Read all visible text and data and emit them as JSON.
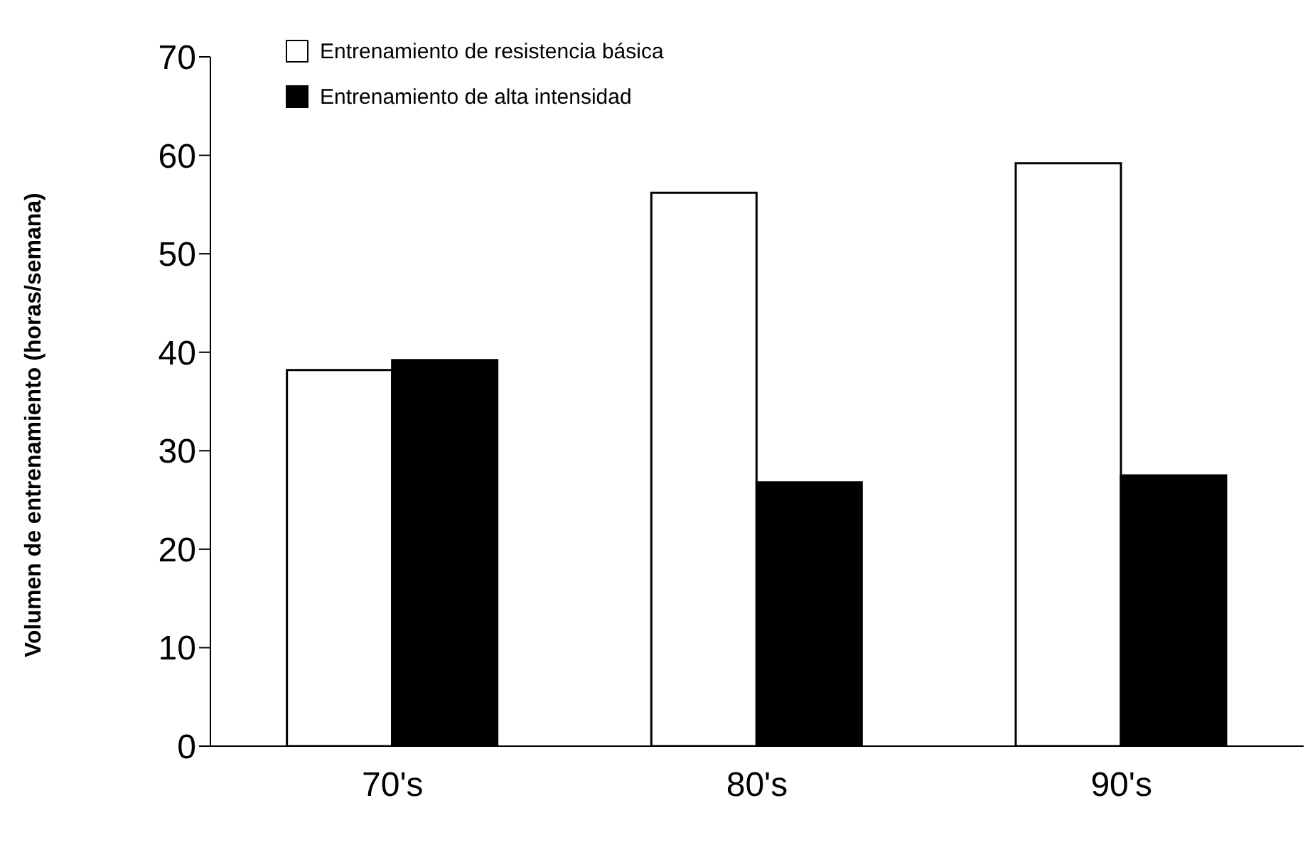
{
  "chart_data": {
    "type": "bar",
    "ylabel": "Volumen de entrenamiento (horas/semana)",
    "categories": [
      "70's",
      "80's",
      "90's"
    ],
    "series": [
      {
        "name": "Entrenamiento de resistencia básica",
        "color": "#ffffff",
        "values": [
          38.2,
          56.2,
          59.2
        ]
      },
      {
        "name": "Entrenamiento de alta intensidad",
        "color": "#000000",
        "values": [
          39.2,
          26.8,
          27.5
        ]
      }
    ],
    "ylim": [
      0,
      70
    ],
    "yticks": [
      0,
      10,
      20,
      30,
      40,
      50,
      60,
      70
    ],
    "grid": false,
    "legend": "top left"
  }
}
